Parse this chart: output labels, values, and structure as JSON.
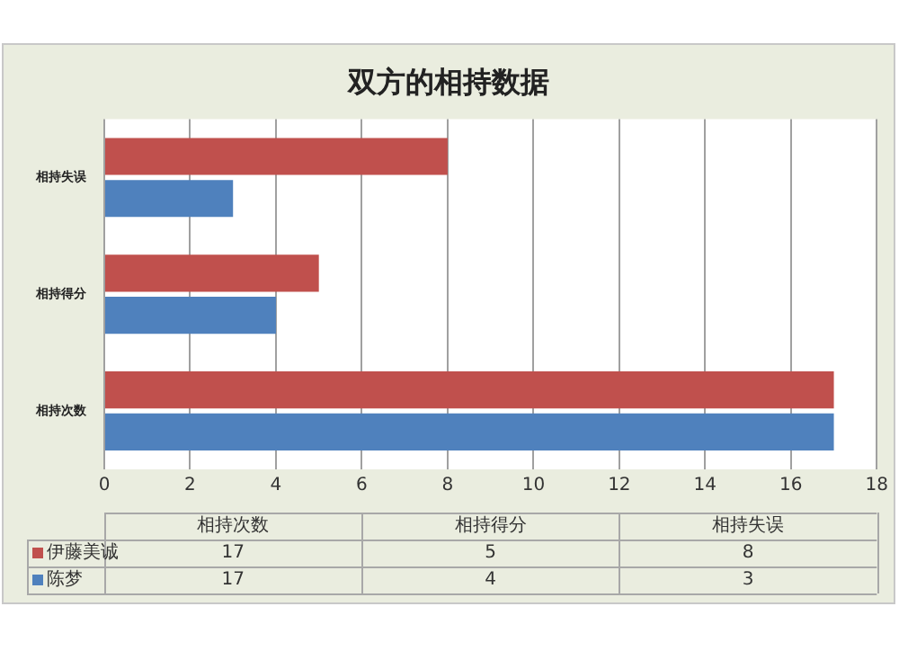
{
  "chart_data": {
    "type": "bar",
    "orientation": "horizontal",
    "title": "双方的相持数据",
    "categories": [
      "相持失误",
      "相持得分",
      "相持次数"
    ],
    "series": [
      {
        "name": "伊藤美诚",
        "color": "#c0504d",
        "values": [
          8,
          5,
          17
        ]
      },
      {
        "name": "陈梦",
        "color": "#4f81bd",
        "values": [
          3,
          4,
          17
        ]
      }
    ],
    "xlim": [
      0,
      18
    ],
    "xticks": [
      0,
      2,
      4,
      6,
      8,
      10,
      12,
      14,
      16,
      18
    ],
    "grid": "x",
    "legend": "bottom",
    "annotations": [
      "17",
      "5",
      "8",
      "17",
      "4",
      "3"
    ]
  }
}
